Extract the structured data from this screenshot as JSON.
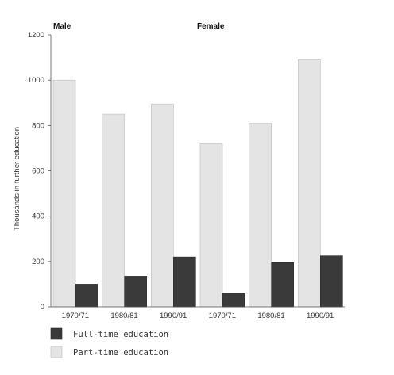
{
  "chart_data": {
    "type": "bar",
    "ylabel": "Thousands in further education",
    "xlabel": "",
    "ylim": [
      0,
      1200
    ],
    "yticks": [
      0,
      200,
      400,
      600,
      800,
      1000,
      1200
    ],
    "grid": false,
    "legend_position": "bottom-left",
    "groups": [
      "Male",
      "Female"
    ],
    "categories": [
      "1970/71",
      "1980/81",
      "1990/91",
      "1970/71",
      "1980/81",
      "1990/91"
    ],
    "series": [
      {
        "name": "Full-time education",
        "color": "#3a3a3a",
        "values": [
          100,
          135,
          220,
          60,
          195,
          225
        ]
      },
      {
        "name": "Part-time education",
        "color": "#e4e4e4",
        "values": [
          1000,
          850,
          895,
          720,
          810,
          1090
        ]
      }
    ]
  }
}
